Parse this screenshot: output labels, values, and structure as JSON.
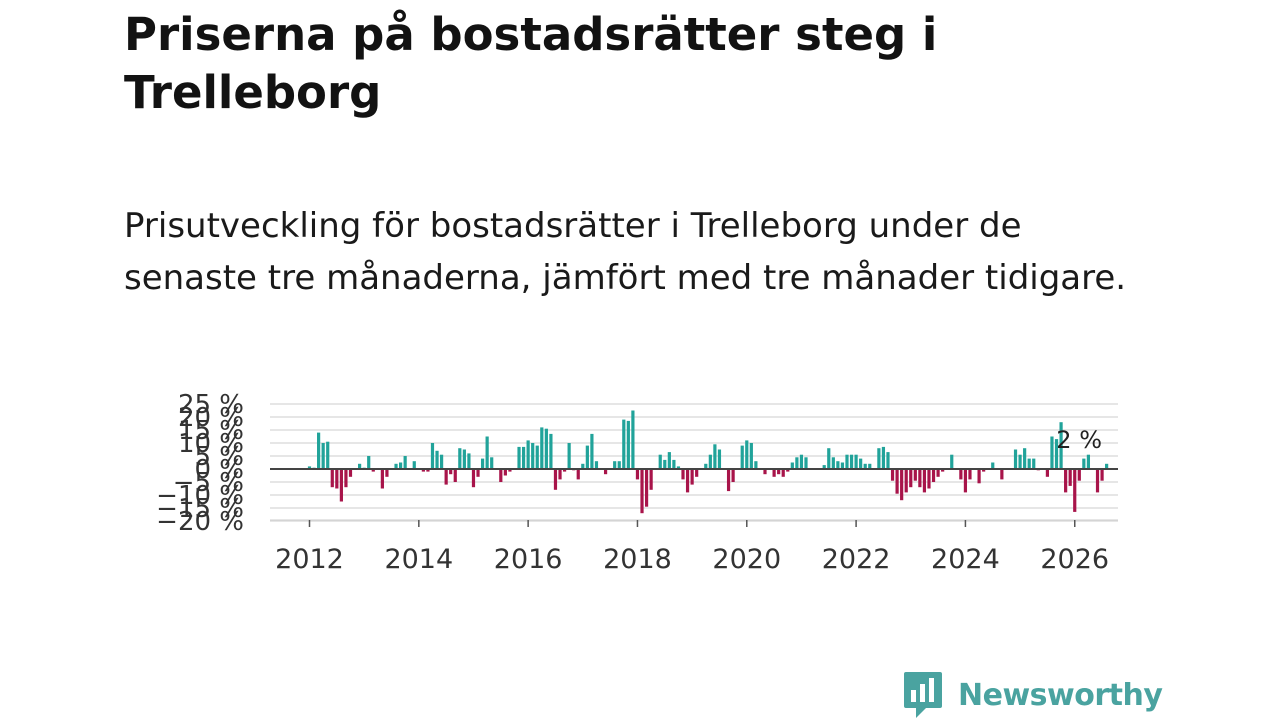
{
  "header": {
    "title": "Priserna på bostadsrätter steg i Trelleborg",
    "subtitle": "Prisutveckling för bostadsrätter i Trelleborg under de senaste tre månaderna, jämfört med tre månader tidigare."
  },
  "brand": {
    "name": "Newsworthy",
    "icon": "newsworthy-logo-icon"
  },
  "colors": {
    "positive": "#21a39a",
    "negative": "#a8144a",
    "zero_line": "#444444",
    "grid": "#dddddd"
  },
  "chart_data": {
    "type": "bar",
    "title": "Priserna på bostadsrätter steg i Trelleborg",
    "xlabel": "",
    "ylabel": "",
    "x_start": "2012-01",
    "x_step": "month",
    "ylim": [
      -20,
      25
    ],
    "y_ticks": [
      25,
      20,
      15,
      10,
      5,
      0,
      -5,
      -10,
      -15,
      -20
    ],
    "y_tick_labels": [
      "25 %",
      "20 %",
      "15 %",
      "10 %",
      "5 %",
      "0 %",
      "−5 %",
      "−10 %",
      "−15 %",
      "−20 %"
    ],
    "x_ticks": [
      2012,
      2014,
      2016,
      2018,
      2020,
      2022,
      2024,
      2026
    ],
    "annotation": {
      "text": "2 %",
      "value": 2
    },
    "grid": true,
    "values": [
      1,
      0.5,
      14,
      10,
      10.5,
      -7,
      -7.5,
      -12.5,
      -7,
      -3,
      0,
      2,
      0.5,
      5,
      -1,
      0,
      -7.5,
      -3,
      0,
      2,
      2.5,
      5,
      0,
      3,
      0,
      -1,
      -1,
      10,
      7,
      5.5,
      -6,
      -2,
      -5,
      8,
      7.5,
      6,
      -7,
      -3,
      4,
      12.5,
      4.5,
      0,
      -5,
      -2.5,
      -1,
      0,
      8.5,
      8.5,
      11,
      10,
      9,
      16,
      15.5,
      13.5,
      -8,
      -4,
      -1,
      10,
      -0.5,
      -4,
      2,
      9,
      13.5,
      3,
      0,
      -2,
      0,
      3,
      3,
      19,
      18.5,
      22.5,
      -4,
      -17,
      -14.5,
      -8,
      0,
      5.5,
      3.5,
      6.5,
      3.5,
      1,
      -4,
      -9,
      -6,
      -3,
      0,
      2,
      5.5,
      9.5,
      7.5,
      0,
      -8.5,
      -5,
      0,
      9,
      11,
      10,
      3,
      0,
      -2,
      0,
      -3,
      -2,
      -3,
      -1,
      2.5,
      4.5,
      5.5,
      4.5,
      0,
      0,
      0,
      1.5,
      8,
      4.5,
      3,
      2.5,
      5.5,
      5.5,
      5.5,
      4,
      2,
      2,
      0,
      8,
      8.5,
      6.5,
      -4.5,
      -9.5,
      -12,
      -9,
      -7,
      -4.5,
      -7,
      -9,
      -7.5,
      -5,
      -3,
      -1,
      0,
      5.5,
      0,
      -4,
      -9,
      -4,
      0,
      -5.5,
      -1,
      0,
      2.5,
      0,
      -4,
      0,
      0,
      7.5,
      5.5,
      8,
      4,
      4,
      -0.5,
      0,
      -3,
      12.5,
      11.5,
      18,
      -9,
      -6.5,
      -16.5,
      -4.5,
      4,
      5.5,
      0,
      -9,
      -4.5,
      2
    ]
  }
}
